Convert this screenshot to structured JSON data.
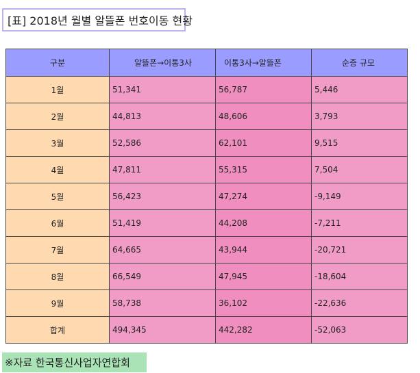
{
  "title": "[표] 2018년 월별 알뜰폰 번호이동 현황",
  "table": {
    "headers": [
      "구분",
      "알뜰폰→이통3사",
      "이통3사→알뜰폰",
      "순증 규모"
    ],
    "rows": [
      {
        "label": "1월",
        "a": "51,341",
        "b": "56,787",
        "net": "5,446"
      },
      {
        "label": "2월",
        "a": "44,813",
        "b": "48,606",
        "net": "3,793"
      },
      {
        "label": "3월",
        "a": "52,586",
        "b": "62,101",
        "net": "9,515"
      },
      {
        "label": "4월",
        "a": "47,811",
        "b": "55,315",
        "net": "7,504"
      },
      {
        "label": "5월",
        "a": "56,423",
        "b": "47,274",
        "net": "-9,149"
      },
      {
        "label": "6월",
        "a": "51,419",
        "b": "44,208",
        "net": "-7,211"
      },
      {
        "label": "7월",
        "a": "64,665",
        "b": "43,944",
        "net": "-20,721"
      },
      {
        "label": "8월",
        "a": "66,549",
        "b": "47,945",
        "net": "-18,604"
      },
      {
        "label": "9월",
        "a": "58,738",
        "b": "36,102",
        "net": "-22,636"
      },
      {
        "label": "합계",
        "a": "494,345",
        "b": "442,282",
        "net": "-52,063"
      }
    ]
  },
  "source": "※자료 한국통신사업자연합회",
  "colors": {
    "header_bg": "#9a9cff",
    "label_bg": "#ffd9b0",
    "value_bg": "#f19cc6",
    "title_border": "#b9b4f0",
    "source_bg": "#a9e3b6"
  }
}
